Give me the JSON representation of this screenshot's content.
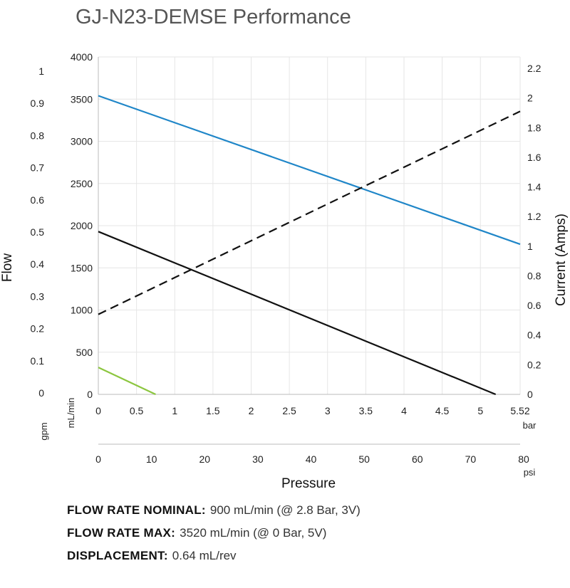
{
  "title": "GJ-N23-DEMSE Performance",
  "chart_data": {
    "type": "line",
    "title": "GJ-N23-DEMSE Performance",
    "y_left_label": "Flow",
    "y_left_gpm_ticks": [
      "1",
      "0.9",
      "0.8",
      "0.7",
      "0.6",
      "0.5",
      "0.4",
      "0.3",
      "0.2",
      "0.1",
      "0"
    ],
    "y_left_gpm_unit": "gpm",
    "y_left_mlmin_ticks": [
      "4000",
      "3500",
      "3000",
      "2500",
      "2000",
      "1500",
      "1000",
      "500",
      "0"
    ],
    "y_left_mlmin_unit": "mL/min",
    "y_left_lim": [
      0,
      4000
    ],
    "y_right_label": "Current (Amps)",
    "y_right_ticks": [
      "2.2",
      "2",
      "1.8",
      "1.6",
      "1.4",
      "1.2",
      "1",
      "0.8",
      "0.6",
      "0.4",
      "0.2",
      "0"
    ],
    "y_right_lim": [
      0,
      2.2
    ],
    "x_label": "Pressure",
    "x_bar_ticks": [
      "0",
      "0.5",
      "1",
      "1.5",
      "2",
      "2.5",
      "3",
      "3.5",
      "4",
      "4.5",
      "5",
      "5.52"
    ],
    "x_bar_unit": "bar",
    "x_psi_ticks": [
      "0",
      "10",
      "20",
      "30",
      "40",
      "50",
      "60",
      "70",
      "80"
    ],
    "x_psi_unit": "psi",
    "x_lim": [
      0,
      5.52
    ],
    "grid": true,
    "series": [
      {
        "axis": "left",
        "color": "#1f86c8",
        "style": "solid",
        "x": [
          0,
          5.52
        ],
        "y": [
          3540,
          1780
        ]
      },
      {
        "axis": "left",
        "color": "#111111",
        "style": "solid",
        "x": [
          0,
          5.2
        ],
        "y": [
          1930,
          0
        ]
      },
      {
        "axis": "left",
        "color": "#8cc63f",
        "style": "solid",
        "x": [
          0,
          0.75
        ],
        "y": [
          320,
          0
        ]
      },
      {
        "axis": "right",
        "color": "#111111",
        "style": "dashed",
        "x": [
          0,
          5.52
        ],
        "y": [
          0.54,
          1.91
        ]
      }
    ]
  },
  "specs": [
    {
      "label": "FLOW RATE NOMINAL:",
      "value": "900 mL/min (@ 2.8 Bar, 3V)"
    },
    {
      "label": "FLOW RATE MAX:",
      "value": "3520 mL/min (@ 0 Bar, 5V)"
    },
    {
      "label": "DISPLACEMENT:",
      "value": "0.64 mL/rev"
    }
  ]
}
